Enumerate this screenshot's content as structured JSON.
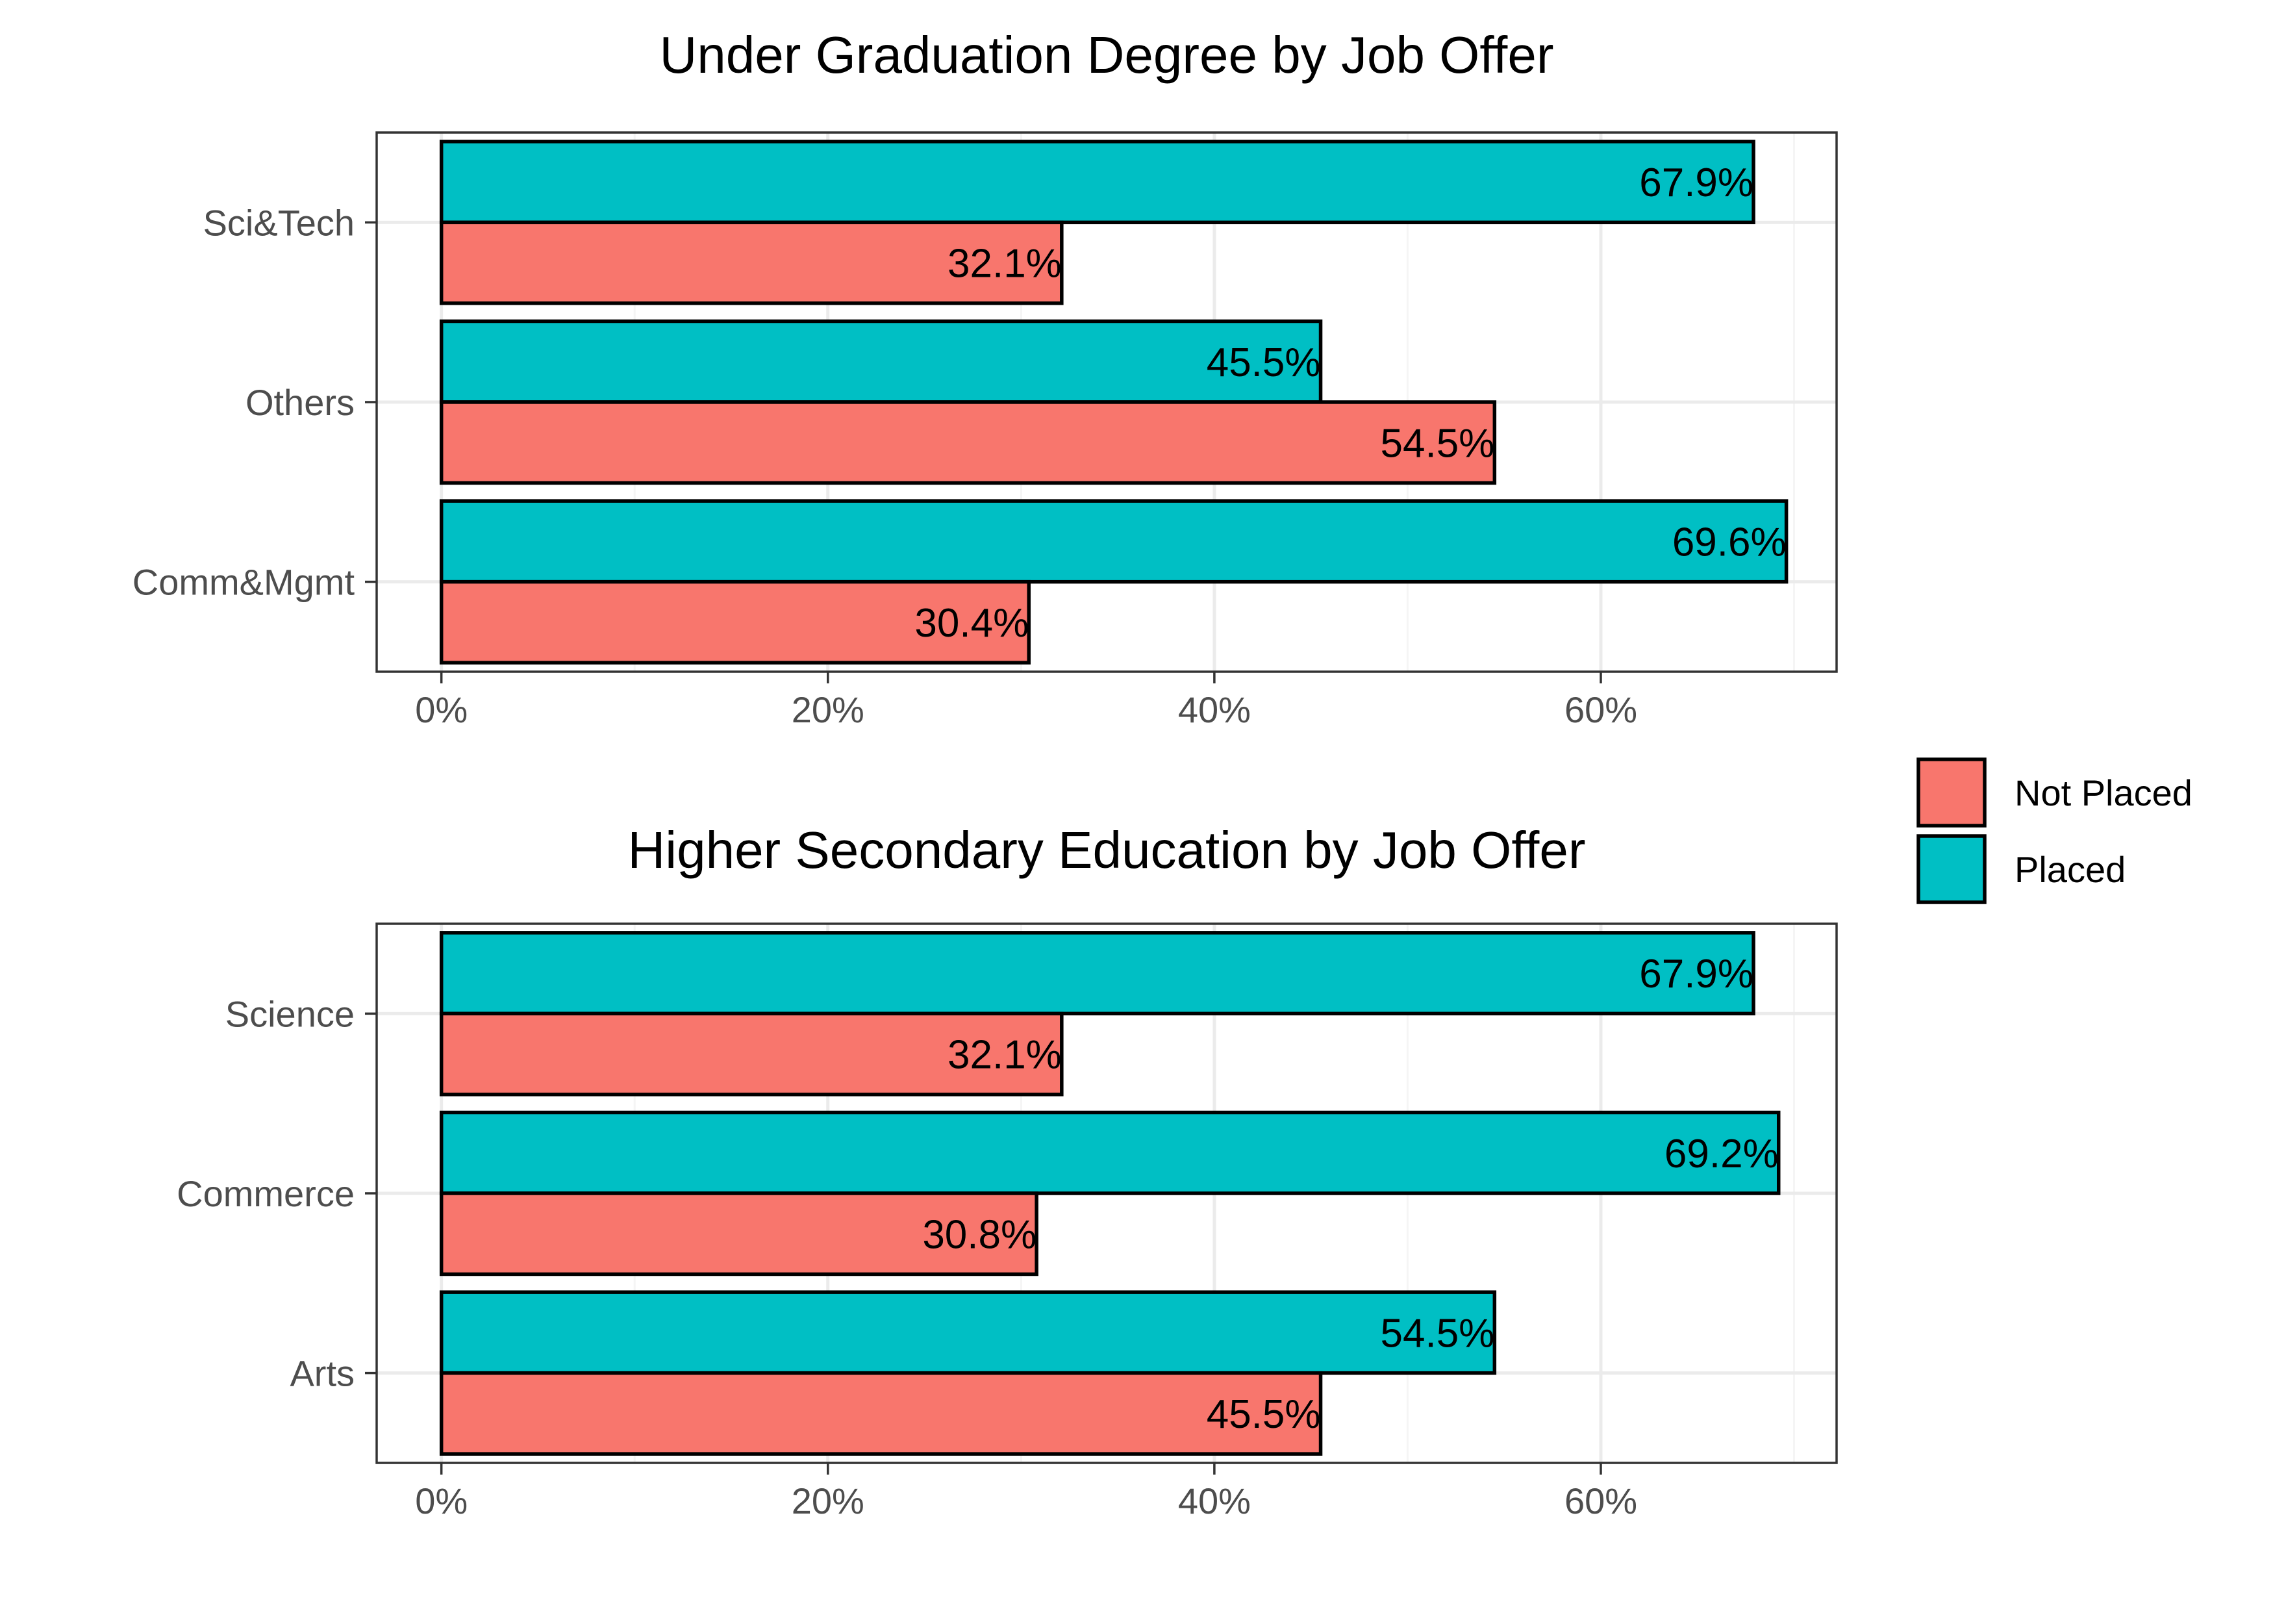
{
  "colors": {
    "Not Placed": "#f8766d",
    "Placed": "#00bfc4"
  },
  "legend": {
    "position": "right",
    "items": [
      {
        "key": "Not Placed",
        "label": "Not Placed"
      },
      {
        "key": "Placed",
        "label": "Placed"
      }
    ]
  },
  "chart_data": [
    {
      "type": "bar",
      "orientation": "horizontal",
      "title": "Under Graduation Degree by Job Offer",
      "xlabel": "",
      "ylabel": "",
      "xlim": [
        0,
        72
      ],
      "xticks": [
        0,
        20,
        40,
        60
      ],
      "xtick_labels": [
        "0%",
        "20%",
        "40%",
        "60%"
      ],
      "grid": true,
      "categories": [
        "Sci&Tech",
        "Others",
        "Comm&Mgmt"
      ],
      "series": [
        {
          "name": "Placed",
          "values": [
            67.9,
            45.5,
            69.6
          ],
          "labels": [
            "67.9%",
            "45.5%",
            "69.6%"
          ]
        },
        {
          "name": "Not Placed",
          "values": [
            32.1,
            54.5,
            30.4
          ],
          "labels": [
            "32.1%",
            "54.5%",
            "30.4%"
          ]
        }
      ]
    },
    {
      "type": "bar",
      "orientation": "horizontal",
      "title": "Higher Secondary Education by Job Offer",
      "xlabel": "",
      "ylabel": "",
      "xlim": [
        0,
        72
      ],
      "xticks": [
        0,
        20,
        40,
        60
      ],
      "xtick_labels": [
        "0%",
        "20%",
        "40%",
        "60%"
      ],
      "grid": true,
      "categories": [
        "Science",
        "Commerce",
        "Arts"
      ],
      "series": [
        {
          "name": "Placed",
          "values": [
            67.9,
            69.2,
            54.5
          ],
          "labels": [
            "67.9%",
            "69.2%",
            "54.5%"
          ]
        },
        {
          "name": "Not Placed",
          "values": [
            32.1,
            30.8,
            45.5
          ],
          "labels": [
            "32.1%",
            "30.8%",
            "45.5%"
          ]
        }
      ]
    }
  ]
}
